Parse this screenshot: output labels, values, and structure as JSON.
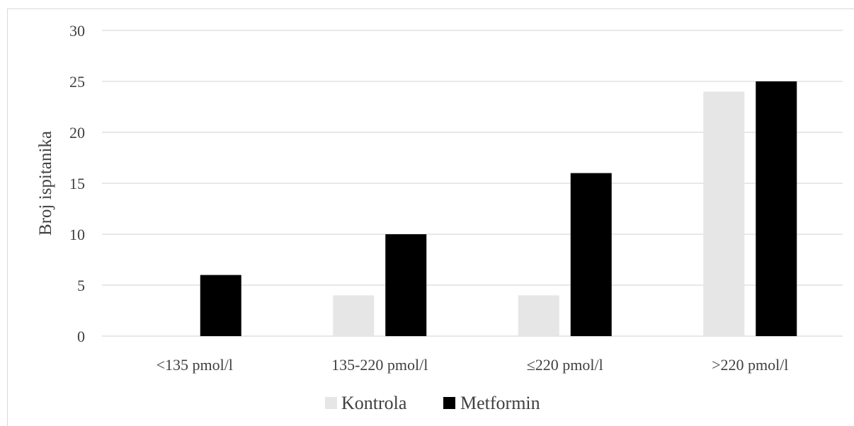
{
  "chart_data": {
    "type": "bar",
    "title": "",
    "xlabel": "",
    "ylabel": "Broj ispitanika",
    "categories": [
      "<135 pmol/l",
      "135-220 pmol/l",
      "≤220 pmol/l",
      ">220 pmol/l"
    ],
    "series": [
      {
        "name": "Kontrola",
        "values": [
          0,
          4,
          4,
          24
        ],
        "color": "#e6e6e6"
      },
      {
        "name": "Metformin",
        "values": [
          6,
          10,
          16,
          25
        ],
        "color": "#000000"
      }
    ],
    "ylim": [
      0,
      30
    ],
    "yticks": [
      0,
      5,
      10,
      15,
      20,
      25,
      30
    ],
    "grid": true,
    "gridColor": "#d9d9d9",
    "legend_position": "bottom"
  }
}
